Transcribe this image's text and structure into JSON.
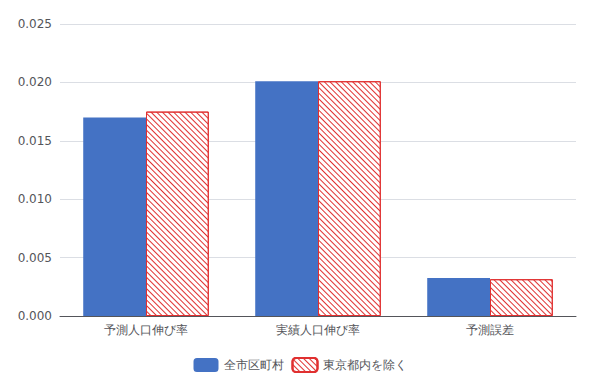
{
  "chart_data": {
    "type": "bar",
    "categories": [
      "予測人口伸び率",
      "実績人口伸び率",
      "予測誤差"
    ],
    "series": [
      {
        "name": "全市区町村",
        "color": "#4472C4",
        "values": [
          0.017,
          0.0201,
          0.00325
        ]
      },
      {
        "name": "東京都内を除く",
        "color": "#E03030",
        "values": [
          0.0175,
          0.0201,
          0.00315
        ]
      }
    ],
    "ylim": [
      0,
      0.025
    ],
    "yticks": [
      {
        "value": 0,
        "label": "0.000"
      },
      {
        "value": 0.005,
        "label": "0.005"
      },
      {
        "value": 0.01,
        "label": "0.010"
      },
      {
        "value": 0.015,
        "label": "0.015"
      },
      {
        "value": 0.02,
        "label": "0.020"
      },
      {
        "value": 0.025,
        "label": "0.025"
      }
    ],
    "grid": true,
    "legend": "bottom"
  }
}
